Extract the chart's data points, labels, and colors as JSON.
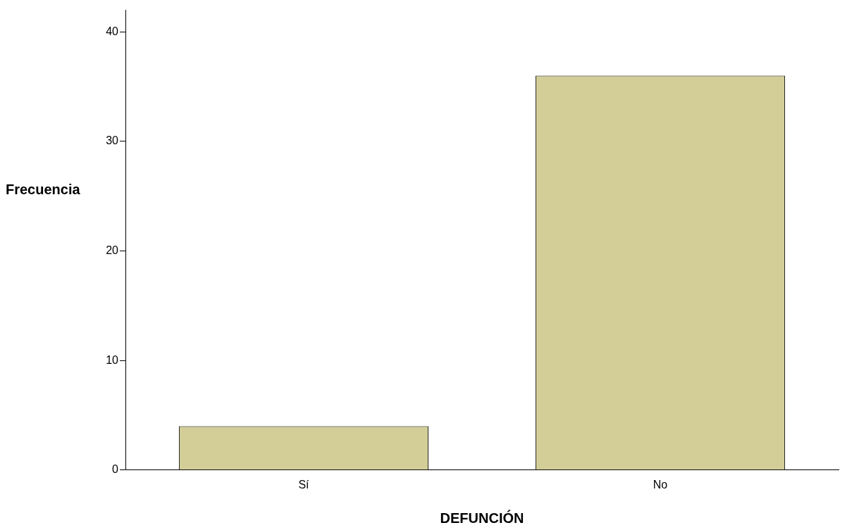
{
  "chart_data": {
    "type": "bar",
    "xlabel": "DEFUNCIÓN",
    "ylabel": "Frecuencia",
    "categories": [
      "Sí",
      "No"
    ],
    "values": [
      4,
      36
    ],
    "color": "#d3ce97",
    "ylim": [
      0,
      42
    ],
    "yticks": [
      0,
      10,
      20,
      30,
      40
    ],
    "grid": false,
    "legend": false
  }
}
